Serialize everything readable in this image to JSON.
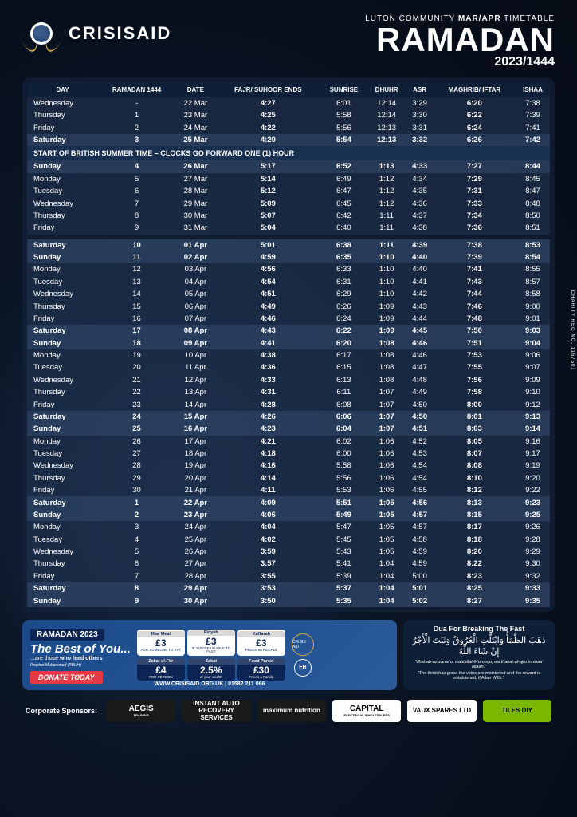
{
  "brand": "CRISISAID",
  "header": {
    "community": "LUTON COMMUNITY",
    "months": "MAR/APR",
    "label": "TIMETABLE",
    "title": "RAMADAN",
    "year": "2023/1444"
  },
  "columns": [
    "DAY",
    "RAMADAN 1444",
    "DATE",
    "FAJR/ SUHOOR ENDS",
    "SUNRISE",
    "DHUHR",
    "ASR",
    "MAGHRIB/ IFTAR",
    "ISHAA"
  ],
  "notice": "START OF BRITISH SUMMER TIME – CLOCKS GO FORWARD ONE (1) HOUR",
  "block1": [
    {
      "day": "Wednesday",
      "r": "-",
      "date": "22 Mar",
      "fajr": "4:27",
      "sunrise": "6:01",
      "dhuhr": "12:14",
      "asr": "3:29",
      "maghrib": "6:20",
      "ishaa": "7:38",
      "bold": false
    },
    {
      "day": "Thursday",
      "r": "1",
      "date": "23 Mar",
      "fajr": "4:25",
      "sunrise": "5:58",
      "dhuhr": "12:14",
      "asr": "3:30",
      "maghrib": "6:22",
      "ishaa": "7:39",
      "bold": false
    },
    {
      "day": "Friday",
      "r": "2",
      "date": "24 Mar",
      "fajr": "4:22",
      "sunrise": "5:56",
      "dhuhr": "12:13",
      "asr": "3:31",
      "maghrib": "6:24",
      "ishaa": "7:41",
      "bold": false
    },
    {
      "day": "Saturday",
      "r": "3",
      "date": "25 Mar",
      "fajr": "4:20",
      "sunrise": "5:54",
      "dhuhr": "12:13",
      "asr": "3:32",
      "maghrib": "6:26",
      "ishaa": "7:42",
      "bold": true
    }
  ],
  "block2": [
    {
      "day": "Sunday",
      "r": "4",
      "date": "26 Mar",
      "fajr": "5:17",
      "sunrise": "6:52",
      "dhuhr": "1:13",
      "asr": "4:33",
      "maghrib": "7:27",
      "ishaa": "8:44",
      "bold": true
    },
    {
      "day": "Monday",
      "r": "5",
      "date": "27 Mar",
      "fajr": "5:14",
      "sunrise": "6:49",
      "dhuhr": "1:12",
      "asr": "4:34",
      "maghrib": "7:29",
      "ishaa": "8:45",
      "bold": false
    },
    {
      "day": "Tuesday",
      "r": "6",
      "date": "28 Mar",
      "fajr": "5:12",
      "sunrise": "6:47",
      "dhuhr": "1:12",
      "asr": "4:35",
      "maghrib": "7:31",
      "ishaa": "8:47",
      "bold": false
    },
    {
      "day": "Wednesday",
      "r": "7",
      "date": "29 Mar",
      "fajr": "5:09",
      "sunrise": "6:45",
      "dhuhr": "1:12",
      "asr": "4:36",
      "maghrib": "7:33",
      "ishaa": "8:48",
      "bold": false
    },
    {
      "day": "Thursday",
      "r": "8",
      "date": "30 Mar",
      "fajr": "5:07",
      "sunrise": "6:42",
      "dhuhr": "1:11",
      "asr": "4:37",
      "maghrib": "7:34",
      "ishaa": "8:50",
      "bold": false
    },
    {
      "day": "Friday",
      "r": "9",
      "date": "31 Mar",
      "fajr": "5:04",
      "sunrise": "6:40",
      "dhuhr": "1:11",
      "asr": "4:38",
      "maghrib": "7:36",
      "ishaa": "8:51",
      "bold": false
    }
  ],
  "block3": [
    {
      "day": "Saturday",
      "r": "10",
      "date": "01 Apr",
      "fajr": "5:01",
      "sunrise": "6:38",
      "dhuhr": "1:11",
      "asr": "4:39",
      "maghrib": "7:38",
      "ishaa": "8:53",
      "bold": true
    },
    {
      "day": "Sunday",
      "r": "11",
      "date": "02 Apr",
      "fajr": "4:59",
      "sunrise": "6:35",
      "dhuhr": "1:10",
      "asr": "4:40",
      "maghrib": "7:39",
      "ishaa": "8:54",
      "bold": true
    },
    {
      "day": "Monday",
      "r": "12",
      "date": "03 Apr",
      "fajr": "4:56",
      "sunrise": "6:33",
      "dhuhr": "1:10",
      "asr": "4:40",
      "maghrib": "7:41",
      "ishaa": "8:55",
      "bold": false
    },
    {
      "day": "Tuesday",
      "r": "13",
      "date": "04 Apr",
      "fajr": "4:54",
      "sunrise": "6:31",
      "dhuhr": "1:10",
      "asr": "4:41",
      "maghrib": "7:43",
      "ishaa": "8:57",
      "bold": false
    },
    {
      "day": "Wednesday",
      "r": "14",
      "date": "05 Apr",
      "fajr": "4:51",
      "sunrise": "6:29",
      "dhuhr": "1:10",
      "asr": "4:42",
      "maghrib": "7:44",
      "ishaa": "8:58",
      "bold": false
    },
    {
      "day": "Thursday",
      "r": "15",
      "date": "06 Apr",
      "fajr": "4:49",
      "sunrise": "6:26",
      "dhuhr": "1:09",
      "asr": "4:43",
      "maghrib": "7:46",
      "ishaa": "9:00",
      "bold": false
    },
    {
      "day": "Friday",
      "r": "16",
      "date": "07 Apr",
      "fajr": "4:46",
      "sunrise": "6:24",
      "dhuhr": "1:09",
      "asr": "4:44",
      "maghrib": "7:48",
      "ishaa": "9:01",
      "bold": false
    },
    {
      "day": "Saturday",
      "r": "17",
      "date": "08 Apr",
      "fajr": "4:43",
      "sunrise": "6:22",
      "dhuhr": "1:09",
      "asr": "4:45",
      "maghrib": "7:50",
      "ishaa": "9:03",
      "bold": true
    },
    {
      "day": "Sunday",
      "r": "18",
      "date": "09 Apr",
      "fajr": "4:41",
      "sunrise": "6:20",
      "dhuhr": "1:08",
      "asr": "4:46",
      "maghrib": "7:51",
      "ishaa": "9:04",
      "bold": true
    },
    {
      "day": "Monday",
      "r": "19",
      "date": "10 Apr",
      "fajr": "4:38",
      "sunrise": "6:17",
      "dhuhr": "1:08",
      "asr": "4:46",
      "maghrib": "7:53",
      "ishaa": "9:06",
      "bold": false
    },
    {
      "day": "Tuesday",
      "r": "20",
      "date": "11 Apr",
      "fajr": "4:36",
      "sunrise": "6:15",
      "dhuhr": "1:08",
      "asr": "4:47",
      "maghrib": "7:55",
      "ishaa": "9:07",
      "bold": false
    },
    {
      "day": "Wednesday",
      "r": "21",
      "date": "12 Apr",
      "fajr": "4:33",
      "sunrise": "6:13",
      "dhuhr": "1:08",
      "asr": "4:48",
      "maghrib": "7:56",
      "ishaa": "9:09",
      "bold": false
    },
    {
      "day": "Thursday",
      "r": "22",
      "date": "13 Apr",
      "fajr": "4:31",
      "sunrise": "6:11",
      "dhuhr": "1:07",
      "asr": "4:49",
      "maghrib": "7:58",
      "ishaa": "9:10",
      "bold": false
    },
    {
      "day": "Friday",
      "r": "23",
      "date": "14 Apr",
      "fajr": "4:28",
      "sunrise": "6:08",
      "dhuhr": "1:07",
      "asr": "4:50",
      "maghrib": "8:00",
      "ishaa": "9:12",
      "bold": false
    },
    {
      "day": "Saturday",
      "r": "24",
      "date": "15 Apr",
      "fajr": "4:26",
      "sunrise": "6:06",
      "dhuhr": "1:07",
      "asr": "4:50",
      "maghrib": "8:01",
      "ishaa": "9:13",
      "bold": true
    },
    {
      "day": "Sunday",
      "r": "25",
      "date": "16 Apr",
      "fajr": "4:23",
      "sunrise": "6:04",
      "dhuhr": "1:07",
      "asr": "4:51",
      "maghrib": "8:03",
      "ishaa": "9:14",
      "bold": true
    },
    {
      "day": "Monday",
      "r": "26",
      "date": "17 Apr",
      "fajr": "4:21",
      "sunrise": "6:02",
      "dhuhr": "1:06",
      "asr": "4:52",
      "maghrib": "8:05",
      "ishaa": "9:16",
      "bold": false
    },
    {
      "day": "Tuesday",
      "r": "27",
      "date": "18 Apr",
      "fajr": "4:18",
      "sunrise": "6:00",
      "dhuhr": "1:06",
      "asr": "4:53",
      "maghrib": "8:07",
      "ishaa": "9:17",
      "bold": false
    },
    {
      "day": "Wednesday",
      "r": "28",
      "date": "19 Apr",
      "fajr": "4:16",
      "sunrise": "5:58",
      "dhuhr": "1:06",
      "asr": "4:54",
      "maghrib": "8:08",
      "ishaa": "9:19",
      "bold": false
    },
    {
      "day": "Thursday",
      "r": "29",
      "date": "20 Apr",
      "fajr": "4:14",
      "sunrise": "5:56",
      "dhuhr": "1:06",
      "asr": "4:54",
      "maghrib": "8:10",
      "ishaa": "9:20",
      "bold": false
    },
    {
      "day": "Friday",
      "r": "30",
      "date": "21 Apr",
      "fajr": "4:11",
      "sunrise": "5:53",
      "dhuhr": "1:06",
      "asr": "4:55",
      "maghrib": "8:12",
      "ishaa": "9:22",
      "bold": false
    },
    {
      "day": "Saturday",
      "r": "1",
      "date": "22 Apr",
      "fajr": "4:09",
      "sunrise": "5:51",
      "dhuhr": "1:05",
      "asr": "4:56",
      "maghrib": "8:13",
      "ishaa": "9:23",
      "bold": true
    },
    {
      "day": "Sunday",
      "r": "2",
      "date": "23 Apr",
      "fajr": "4:06",
      "sunrise": "5:49",
      "dhuhr": "1:05",
      "asr": "4:57",
      "maghrib": "8:15",
      "ishaa": "9:25",
      "bold": true
    },
    {
      "day": "Monday",
      "r": "3",
      "date": "24 Apr",
      "fajr": "4:04",
      "sunrise": "5:47",
      "dhuhr": "1:05",
      "asr": "4:57",
      "maghrib": "8:17",
      "ishaa": "9:26",
      "bold": false
    },
    {
      "day": "Tuesday",
      "r": "4",
      "date": "25 Apr",
      "fajr": "4:02",
      "sunrise": "5:45",
      "dhuhr": "1:05",
      "asr": "4:58",
      "maghrib": "8:18",
      "ishaa": "9:28",
      "bold": false
    },
    {
      "day": "Wednesday",
      "r": "5",
      "date": "26 Apr",
      "fajr": "3:59",
      "sunrise": "5:43",
      "dhuhr": "1:05",
      "asr": "4:59",
      "maghrib": "8:20",
      "ishaa": "9:29",
      "bold": false
    },
    {
      "day": "Thursday",
      "r": "6",
      "date": "27 Apr",
      "fajr": "3:57",
      "sunrise": "5:41",
      "dhuhr": "1:04",
      "asr": "4:59",
      "maghrib": "8:22",
      "ishaa": "9:30",
      "bold": false
    },
    {
      "day": "Friday",
      "r": "7",
      "date": "28 Apr",
      "fajr": "3:55",
      "sunrise": "5:39",
      "dhuhr": "1:04",
      "asr": "5:00",
      "maghrib": "8:23",
      "ishaa": "9:32",
      "bold": false
    },
    {
      "day": "Saturday",
      "r": "8",
      "date": "29 Apr",
      "fajr": "3:53",
      "sunrise": "5:37",
      "dhuhr": "1:04",
      "asr": "5:01",
      "maghrib": "8:25",
      "ishaa": "9:33",
      "bold": true
    },
    {
      "day": "Sunday",
      "r": "9",
      "date": "30 Apr",
      "fajr": "3:50",
      "sunrise": "5:35",
      "dhuhr": "1:04",
      "asr": "5:02",
      "maghrib": "8:27",
      "ishaa": "9:35",
      "bold": true
    }
  ],
  "donate": {
    "badge": "RAMADAN 2023",
    "headline": "The Best of You...",
    "sub": "...are those who feed others",
    "prophet": "Prophet Muhammad (PBUH)",
    "button": "DONATE TODAY",
    "contact": "WWW.CRISISAID.ORG.UK | 01582 211 066",
    "prices": [
      {
        "label": "Iftar Meal",
        "val": "£3",
        "sub": "FOR SOMEONE TO EAT",
        "blue": false
      },
      {
        "label": "Fidyah",
        "val": "£3",
        "sub": "IF YOU'RE UNABLE TO FAST",
        "blue": false
      },
      {
        "label": "Kaffarah",
        "val": "£3",
        "sub": "FEEDS 60 PEOPLE",
        "blue": false
      },
      {
        "label": "Zakat al-Fitr",
        "val": "£4",
        "sub": "PER PERSON",
        "blue": true
      },
      {
        "label": "Zakat",
        "val": "2.5%",
        "sub": "of your wealth",
        "blue": true
      },
      {
        "label": "Food Parcel",
        "val": "£30",
        "sub": "Feeds a Family",
        "blue": true
      }
    ]
  },
  "dua": {
    "title": "Dua For Breaking The Fast",
    "arabic": "ذَهَبَ الظَّمَأُ وَابْتَلَّتِ الْعُرُوقُ وَثَبَتَ الْأَجْرُ إِنْ شَاءَ اللَّهُ",
    "translit": "\"dhahab-az-zama'u, wabtallat-il-'urooqu, wa thabat-al-ajru in shaa' allaah.\"",
    "english": "\"The thirst has gone, the veins are moistened and the reward is established, if Allah Wills.\""
  },
  "sponsors_label": "Corporate Sponsors:",
  "sponsors": [
    {
      "text": "AEGIS",
      "sub": "TRAINING",
      "cls": "dark"
    },
    {
      "text": "INSTANT AUTO RECOVERY SERVICES",
      "cls": "dark"
    },
    {
      "text": "maximum nutrition",
      "cls": "dark"
    },
    {
      "text": "CAPITAL",
      "sub": "ELECTRICAL WHOLESALERS",
      "cls": ""
    },
    {
      "text": "VAUX SPARES LTD",
      "cls": ""
    },
    {
      "text": "TILES DIY",
      "cls": "green"
    }
  ],
  "charity_reg": "CHARITY REG NO. 1157507"
}
